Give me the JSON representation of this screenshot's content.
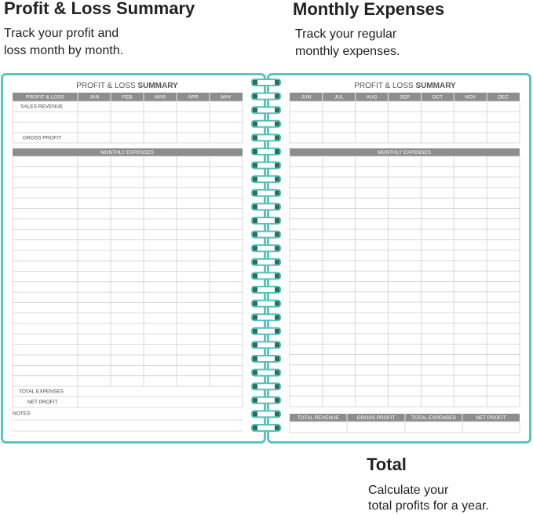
{
  "sections": [
    {
      "heading": "Profit & Loss Summary",
      "description": [
        "Track your profit and",
        "loss month by month."
      ]
    },
    {
      "heading": "Monthly Expenses",
      "description": [
        "Track your regular",
        "monthly expenses."
      ]
    },
    {
      "heading": "Total",
      "description": [
        "Calculate your",
        "total profits for a year."
      ]
    }
  ],
  "left_page": {
    "title": [
      "PROFIT & LOSS",
      "SUMMARY"
    ],
    "columns": [
      "PROFIT & LOSS",
      "JAN",
      "FEB",
      "MAR",
      "APR",
      "MAY"
    ],
    "rows": [
      "SALES REVENUE",
      "GROSS PROFIT"
    ],
    "expenses_header": "MONTHLY EXPENSES",
    "totals": [
      "TOTAL EXPENSES",
      "NET PROFIT"
    ],
    "notes": "NOTES"
  },
  "right_page": {
    "title": [
      "PROFIT & LOSS",
      "SUMMARY"
    ],
    "columns": [
      "JUN",
      "JUL",
      "AUG",
      "SEP",
      "OCT",
      "NOV",
      "DEC"
    ],
    "expenses_header": "MONTHLY EXPENSES",
    "summary_columns": [
      "TOTAL REVENUE",
      "GROSS PROFIT",
      "TOTAL EXPENSES",
      "NET PROFIT"
    ]
  }
}
